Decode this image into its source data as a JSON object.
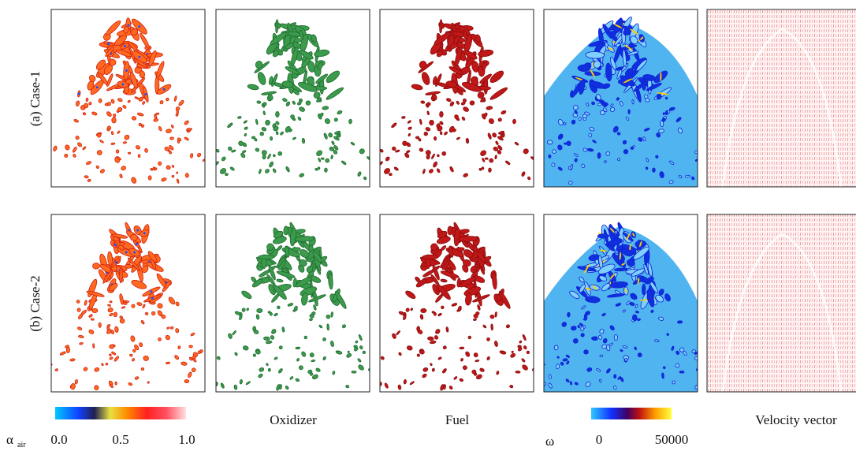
{
  "rows": [
    "(a) Case-1",
    "(b) Case-2"
  ],
  "columns": {
    "oxidizer": "Oxidizer",
    "fuel": "Fuel",
    "velocity": "Velocity vector"
  },
  "colorbars": {
    "alpha": {
      "symbol": "α",
      "subscript": "air",
      "ticks": [
        "0.0",
        "0.5",
        "1.0"
      ]
    },
    "omega": {
      "symbol": "ω",
      "ticks": [
        "0",
        "50000"
      ]
    }
  }
}
